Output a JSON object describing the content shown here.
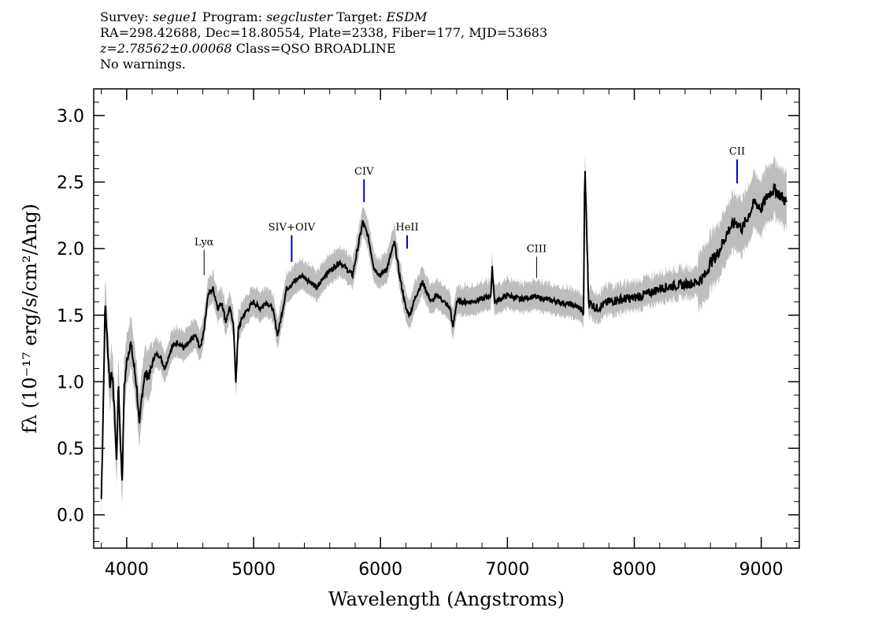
{
  "header": {
    "survey_label": "Survey:",
    "survey": "segue1",
    "program_label": "Program:",
    "program": "segcluster",
    "target_label": "Target:",
    "target": "ESDM",
    "line2": "RA=298.42688, Dec=18.80554, Plate=2338, Fiber=177, MJD=53683",
    "redshift": "z=2.78562±0.00068",
    "class": "Class=QSO BROADLINE",
    "warnings": "No warnings."
  },
  "chart_data": {
    "type": "line",
    "xlabel": "Wavelength (Angstroms)",
    "ylabel": "fλ (10⁻¹⁷ erg/s/cm²/Ang)",
    "xlim": [
      3740,
      9300
    ],
    "ylim": [
      -0.25,
      3.2
    ],
    "xticks": [
      4000,
      5000,
      6000,
      7000,
      8000,
      9000
    ],
    "yticks": [
      0.0,
      0.5,
      1.0,
      1.5,
      2.0,
      2.5,
      3.0
    ],
    "ytick_labels": [
      "0.0",
      "0.5",
      "1.0",
      "1.5",
      "2.0",
      "2.5",
      "3.0"
    ],
    "error_color": "#bdbdbd",
    "line_color": "#000000",
    "emission_line_color": "#0000cc",
    "spectrum_anchors": [
      [
        3800,
        0.12
      ],
      [
        3815,
        0.8
      ],
      [
        3830,
        1.6
      ],
      [
        3850,
        1.25
      ],
      [
        3870,
        0.95
      ],
      [
        3880,
        1.1
      ],
      [
        3900,
        0.85
      ],
      [
        3920,
        0.4
      ],
      [
        3935,
        1.0
      ],
      [
        3950,
        0.55
      ],
      [
        3965,
        0.25
      ],
      [
        3980,
        0.95
      ],
      [
        4000,
        1.15
      ],
      [
        4030,
        1.3
      ],
      [
        4060,
        1.1
      ],
      [
        4080,
        0.95
      ],
      [
        4100,
        0.65
      ],
      [
        4115,
        0.85
      ],
      [
        4140,
        1.05
      ],
      [
        4180,
        1.05
      ],
      [
        4220,
        1.2
      ],
      [
        4260,
        1.2
      ],
      [
        4300,
        1.1
      ],
      [
        4350,
        1.25
      ],
      [
        4400,
        1.3
      ],
      [
        4450,
        1.25
      ],
      [
        4500,
        1.3
      ],
      [
        4540,
        1.35
      ],
      [
        4580,
        1.25
      ],
      [
        4610,
        1.4
      ],
      [
        4640,
        1.65
      ],
      [
        4680,
        1.7
      ],
      [
        4720,
        1.55
      ],
      [
        4750,
        1.6
      ],
      [
        4780,
        1.45
      ],
      [
        4810,
        1.55
      ],
      [
        4840,
        1.45
      ],
      [
        4860,
        1.0
      ],
      [
        4880,
        1.4
      ],
      [
        4920,
        1.5
      ],
      [
        4960,
        1.55
      ],
      [
        5000,
        1.6
      ],
      [
        5050,
        1.55
      ],
      [
        5100,
        1.6
      ],
      [
        5150,
        1.55
      ],
      [
        5190,
        1.35
      ],
      [
        5220,
        1.5
      ],
      [
        5260,
        1.7
      ],
      [
        5320,
        1.75
      ],
      [
        5380,
        1.8
      ],
      [
        5450,
        1.75
      ],
      [
        5500,
        1.7
      ],
      [
        5560,
        1.8
      ],
      [
        5620,
        1.85
      ],
      [
        5680,
        1.9
      ],
      [
        5730,
        1.85
      ],
      [
        5780,
        1.8
      ],
      [
        5820,
        2.0
      ],
      [
        5860,
        2.2
      ],
      [
        5900,
        2.1
      ],
      [
        5950,
        1.85
      ],
      [
        6000,
        1.8
      ],
      [
        6050,
        1.85
      ],
      [
        6080,
        1.95
      ],
      [
        6110,
        2.05
      ],
      [
        6150,
        1.8
      ],
      [
        6200,
        1.55
      ],
      [
        6230,
        1.5
      ],
      [
        6280,
        1.65
      ],
      [
        6330,
        1.75
      ],
      [
        6400,
        1.6
      ],
      [
        6450,
        1.65
      ],
      [
        6500,
        1.6
      ],
      [
        6550,
        1.55
      ],
      [
        6570,
        1.4
      ],
      [
        6600,
        1.6
      ],
      [
        6700,
        1.6
      ],
      [
        6800,
        1.62
      ],
      [
        6870,
        1.65
      ],
      [
        6880,
        1.85
      ],
      [
        6900,
        1.6
      ],
      [
        7000,
        1.65
      ],
      [
        7100,
        1.62
      ],
      [
        7200,
        1.64
      ],
      [
        7300,
        1.62
      ],
      [
        7400,
        1.6
      ],
      [
        7500,
        1.58
      ],
      [
        7580,
        1.55
      ],
      [
        7600,
        1.5
      ],
      [
        7610,
        2.65
      ],
      [
        7620,
        2.3
      ],
      [
        7640,
        1.6
      ],
      [
        7700,
        1.55
      ],
      [
        7800,
        1.6
      ],
      [
        7900,
        1.62
      ],
      [
        8000,
        1.63
      ],
      [
        8100,
        1.66
      ],
      [
        8200,
        1.7
      ],
      [
        8300,
        1.72
      ],
      [
        8400,
        1.73
      ],
      [
        8500,
        1.75
      ],
      [
        8560,
        1.8
      ],
      [
        8600,
        1.9
      ],
      [
        8650,
        1.95
      ],
      [
        8700,
        2.05
      ],
      [
        8750,
        2.15
      ],
      [
        8800,
        2.2
      ],
      [
        8850,
        2.15
      ],
      [
        8900,
        2.25
      ],
      [
        8950,
        2.35
      ],
      [
        9000,
        2.3
      ],
      [
        9050,
        2.4
      ],
      [
        9100,
        2.45
      ],
      [
        9150,
        2.4
      ],
      [
        9200,
        2.35
      ]
    ],
    "emission_lines": [
      {
        "label": "Lyα",
        "wavelength": 4610,
        "flux_top": 1.99,
        "flux_bottom": 1.8,
        "color": "#000000"
      },
      {
        "label": "SIV+OIV",
        "wavelength": 5300,
        "flux_top": 2.1,
        "flux_bottom": 1.9,
        "color": "#0000cc"
      },
      {
        "label": "CIV",
        "wavelength": 5870,
        "flux_top": 2.52,
        "flux_bottom": 2.35,
        "color": "#0000cc"
      },
      {
        "label": "HeII",
        "wavelength": 6210,
        "flux_top": 2.1,
        "flux_bottom": 2.0,
        "color": "#0000cc"
      },
      {
        "label": "CIII",
        "wavelength": 7230,
        "flux_top": 1.94,
        "flux_bottom": 1.78,
        "color": "#000000"
      },
      {
        "label": "CII",
        "wavelength": 8810,
        "flux_top": 2.67,
        "flux_bottom": 2.49,
        "color": "#0000cc"
      }
    ]
  }
}
